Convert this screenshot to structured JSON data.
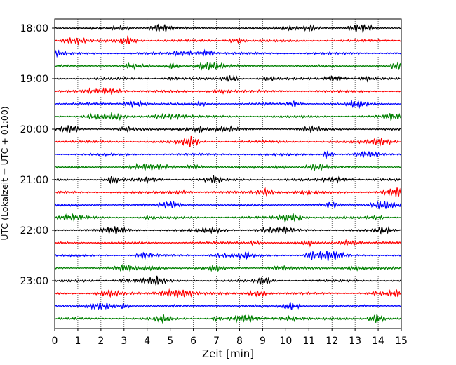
{
  "chart_data": {
    "type": "line",
    "title": "",
    "xlabel": "Zeit  [min]",
    "ylabel": "UTC (Lokalzeit = UTC + 01:00)",
    "xlim": [
      0,
      15
    ],
    "x_ticks": [
      0,
      1,
      2,
      3,
      4,
      5,
      6,
      7,
      8,
      9,
      10,
      11,
      12,
      13,
      14,
      15
    ],
    "x_tick_labels": [
      "0",
      "1",
      "2",
      "3",
      "4",
      "5",
      "6",
      "7",
      "8",
      "9",
      "10",
      "11",
      "12",
      "13",
      "14",
      "15"
    ],
    "y_tick_labels": [
      "18:00",
      "19:00",
      "20:00",
      "21:00",
      "22:00",
      "23:00"
    ],
    "y_ticks_hours": [
      18,
      19,
      20,
      21,
      22,
      23
    ],
    "trace_interval_min": 15,
    "trace_count": 24,
    "trace_start_hour": 18,
    "trace_colors": [
      "#000000",
      "#ff0000",
      "#0000ff",
      "#008000"
    ],
    "grid": "x-dotted"
  }
}
